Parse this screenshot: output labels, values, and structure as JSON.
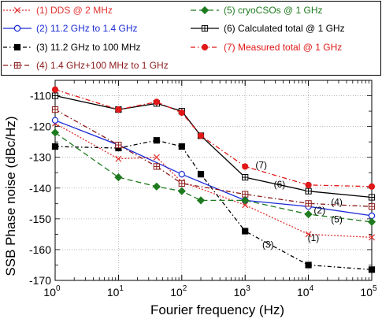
{
  "chart_data": {
    "type": "line",
    "xlabel": "Fourier frequency (Hz)",
    "ylabel": "SSB Phase noise (dBc/Hz)",
    "x_scale": "log",
    "xlim": [
      1,
      100000
    ],
    "ylim": [
      -170,
      -105
    ],
    "grid": true,
    "legend_position": "top",
    "x_ticks": [
      {
        "value": 1,
        "base": "10",
        "exp": "0"
      },
      {
        "value": 10,
        "base": "10",
        "exp": "1"
      },
      {
        "value": 100,
        "base": "10",
        "exp": "2"
      },
      {
        "value": 1000,
        "base": "10",
        "exp": "3"
      },
      {
        "value": 10000,
        "base": "10",
        "exp": "4"
      },
      {
        "value": 100000,
        "base": "10",
        "exp": "5"
      }
    ],
    "y_ticks": [
      "-110",
      "-120",
      "-130",
      "-140",
      "-150",
      "-160",
      "-170"
    ],
    "series": [
      {
        "name": "(1) DDS @ 2 MHz",
        "color": "#e03030",
        "dash": "2,2",
        "marker": "x",
        "x": [
          1,
          10,
          40,
          100,
          1000,
          10000,
          100000
        ],
        "y": [
          -119,
          -130.5,
          -130,
          -138,
          -145.5,
          -155,
          -156
        ]
      },
      {
        "name": "(2) 11.2 GHz to 1.4 GHz",
        "color": "#1a2bd6",
        "dash": "",
        "marker": "circle",
        "x": [
          1,
          10,
          100,
          1000,
          10000,
          100000
        ],
        "y": [
          -118,
          -126,
          -135.5,
          -144,
          -146,
          -149
        ]
      },
      {
        "name": "(3) 11.2 GHz to 100 MHz",
        "color": "#000000",
        "dash": "5,3,1.5,3",
        "marker": "square-filled",
        "x": [
          1,
          10,
          40,
          100,
          200,
          1000,
          10000,
          100000
        ],
        "y": [
          -126.5,
          -127,
          -124.5,
          -126.5,
          -135.5,
          -154,
          -165,
          -166.5
        ]
      },
      {
        "name": "(4) 1.4 GHz+100 MHz to 1 GHz",
        "color": "#8b1a1a",
        "dash": "6,3,1.5,3",
        "marker": "square-cross",
        "x": [
          1,
          10,
          40,
          100,
          1000,
          10000,
          100000
        ],
        "y": [
          -114.5,
          -126,
          -133,
          -138.5,
          -142,
          -145,
          -146
        ]
      },
      {
        "name": "(5) cryoCSOs @ 1 GHz",
        "color": "#1e7a1e",
        "dash": "7,4",
        "marker": "diamond",
        "x": [
          1,
          10,
          40,
          100,
          200,
          1000,
          10000,
          100000
        ],
        "y": [
          -122,
          -136.5,
          -139.5,
          -141,
          -144,
          -144,
          -148.5,
          -151
        ]
      },
      {
        "name": "(6) Calculated total @ 1 GHz",
        "color": "#000000",
        "dash": "",
        "marker": "square-cross",
        "x": [
          1,
          10,
          40,
          100,
          200,
          1000,
          10000,
          100000
        ],
        "y": [
          -110,
          -114.5,
          -112.5,
          -115,
          -123,
          -136.5,
          -141,
          -143
        ]
      },
      {
        "name": "(7) Measured total @ 1 GHz",
        "color": "#e01818",
        "dash": "6,3,1.5,3",
        "marker": "circle-filled",
        "x": [
          1,
          10,
          40,
          100,
          200,
          1000,
          10000,
          100000
        ],
        "y": [
          -108,
          -114.5,
          -112,
          -115.5,
          -123,
          -133,
          -139,
          -139.5
        ]
      }
    ],
    "annotations": [
      {
        "text": "(7)",
        "x": 1800,
        "y": -133.5
      },
      {
        "text": "(6)",
        "x": 3500,
        "y": -139.8
      },
      {
        "text": "(4)",
        "x": 28000,
        "y": -145.5
      },
      {
        "text": "(2)",
        "x": 15000,
        "y": -148.3
      },
      {
        "text": "(5)",
        "x": 28000,
        "y": -151.2
      },
      {
        "text": "(1)",
        "x": 12000,
        "y": -157.2
      },
      {
        "text": "(3)",
        "x": 2300,
        "y": -159.4
      }
    ]
  }
}
